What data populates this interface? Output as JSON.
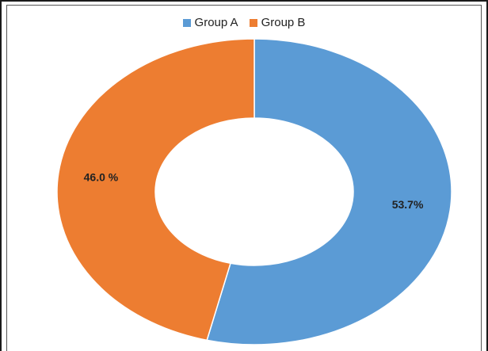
{
  "chart_data": {
    "type": "pie",
    "variant": "donut",
    "title": "",
    "legend_position": "top-center",
    "slices": [
      {
        "name": "Group A",
        "value": 53.7,
        "label": "53.7%",
        "color": "#5b9bd5"
      },
      {
        "name": "Group B",
        "value": 46.0,
        "label": "46.0 %",
        "color": "#ed7d31"
      }
    ]
  }
}
